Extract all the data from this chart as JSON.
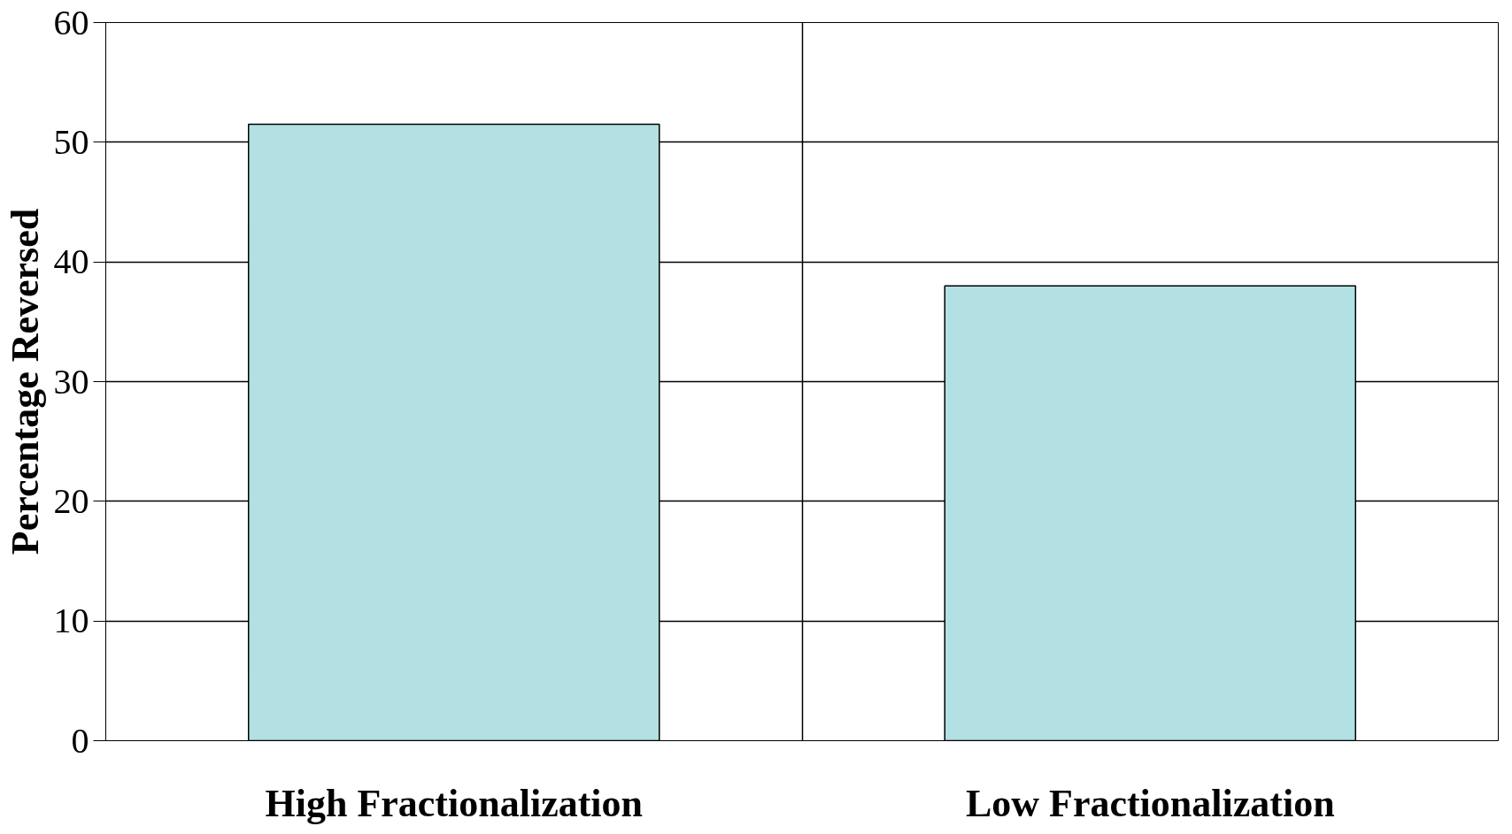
{
  "chart_data": {
    "type": "bar",
    "ylabel": "Percentage Reversed",
    "categories": [
      "High Fractionalization",
      "Low Fractionalization"
    ],
    "values": [
      51.5,
      38.0
    ],
    "color": "#b3e0e2",
    "ylim": [
      0,
      60
    ],
    "yticks": [
      0,
      10,
      20,
      30,
      40,
      50,
      60
    ],
    "grid": true
  }
}
